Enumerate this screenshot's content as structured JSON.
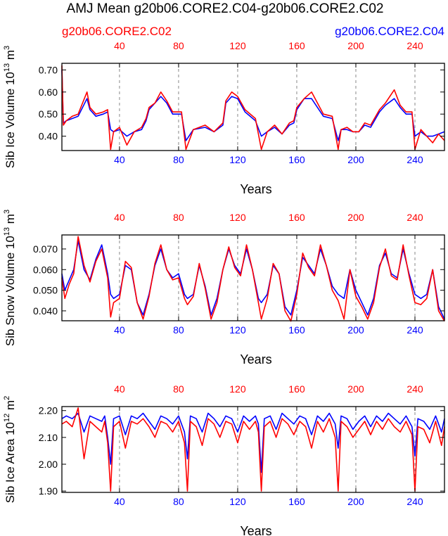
{
  "title": "AMJ Mean g20b06.CORE2.C04-g20b06.CORE2.C02",
  "legend_left": "g20b06.CORE2.C02",
  "legend_right": "g20b06.CORE2.C04",
  "colors": {
    "red": "#ff0000",
    "blue": "#0000ff",
    "black": "#000000",
    "grid": "#888888"
  },
  "chart_data": [
    {
      "type": "line",
      "ylabel_base": "Sib Ice Volume 10",
      "ylabel_exp": "13",
      "ylabel_unit": " m",
      "ylabel_unit_exp": "3",
      "xlabel": "Years",
      "xlim": [
        1,
        260
      ],
      "ylim": [
        0.335,
        0.73
      ],
      "yticks": [
        0.4,
        0.5,
        0.6,
        0.7
      ],
      "ytick_labels": [
        "0.40",
        "0.50",
        "0.60",
        "0.70"
      ],
      "xticks": [
        40,
        80,
        120,
        160,
        200,
        240
      ],
      "xtick_labels": [
        "40",
        "80",
        "120",
        "160",
        "200",
        "240"
      ],
      "grid_x": [
        40,
        80,
        120,
        160,
        200,
        240
      ],
      "series": [
        {
          "name": "g20b06.CORE2.C04",
          "color": "blue",
          "x": [
            1,
            2,
            4,
            8,
            12,
            18,
            20,
            24,
            29,
            32,
            34,
            36,
            40,
            45,
            50,
            55,
            58,
            60,
            64,
            68,
            72,
            76,
            82,
            85,
            90,
            98,
            104,
            110,
            112,
            116,
            120,
            125,
            132,
            136,
            140,
            145,
            150,
            155,
            158,
            160,
            165,
            170,
            178,
            184,
            188,
            190,
            194,
            198,
            202,
            206,
            210,
            216,
            220,
            226,
            230,
            234,
            238,
            240,
            244,
            248,
            252,
            256,
            260
          ],
          "y": [
            0.7,
            0.46,
            0.47,
            0.48,
            0.49,
            0.57,
            0.52,
            0.49,
            0.5,
            0.51,
            0.43,
            0.42,
            0.43,
            0.4,
            0.42,
            0.43,
            0.47,
            0.52,
            0.55,
            0.58,
            0.55,
            0.5,
            0.5,
            0.38,
            0.43,
            0.44,
            0.42,
            0.45,
            0.55,
            0.58,
            0.57,
            0.51,
            0.47,
            0.4,
            0.42,
            0.44,
            0.41,
            0.45,
            0.46,
            0.52,
            0.57,
            0.57,
            0.49,
            0.48,
            0.38,
            0.43,
            0.43,
            0.42,
            0.42,
            0.45,
            0.44,
            0.51,
            0.54,
            0.57,
            0.53,
            0.5,
            0.5,
            0.4,
            0.42,
            0.4,
            0.4,
            0.41,
            0.42
          ]
        },
        {
          "name": "g20b06.CORE2.C02",
          "color": "red",
          "x": [
            1,
            2,
            4,
            8,
            12,
            18,
            20,
            24,
            29,
            32,
            34,
            36,
            40,
            45,
            50,
            55,
            58,
            60,
            64,
            68,
            72,
            76,
            82,
            85,
            90,
            98,
            104,
            110,
            112,
            116,
            120,
            125,
            132,
            136,
            140,
            145,
            150,
            155,
            158,
            160,
            165,
            170,
            178,
            184,
            188,
            190,
            194,
            198,
            202,
            206,
            210,
            216,
            220,
            226,
            230,
            234,
            238,
            240,
            244,
            248,
            252,
            256,
            260
          ],
          "y": [
            0.72,
            0.45,
            0.47,
            0.49,
            0.5,
            0.6,
            0.53,
            0.5,
            0.51,
            0.52,
            0.34,
            0.42,
            0.44,
            0.36,
            0.42,
            0.44,
            0.48,
            0.53,
            0.55,
            0.6,
            0.56,
            0.51,
            0.51,
            0.34,
            0.43,
            0.45,
            0.42,
            0.46,
            0.56,
            0.6,
            0.58,
            0.52,
            0.48,
            0.34,
            0.42,
            0.45,
            0.41,
            0.46,
            0.47,
            0.53,
            0.57,
            0.6,
            0.5,
            0.49,
            0.34,
            0.43,
            0.44,
            0.42,
            0.42,
            0.46,
            0.45,
            0.52,
            0.55,
            0.61,
            0.54,
            0.51,
            0.51,
            0.34,
            0.43,
            0.4,
            0.37,
            0.41,
            0.38
          ]
        }
      ]
    },
    {
      "type": "line",
      "ylabel_base": "Sib Snow Volume 10",
      "ylabel_exp": "13",
      "ylabel_unit": " m",
      "ylabel_unit_exp": "3",
      "xlabel": "Years",
      "xlim": [
        1,
        260
      ],
      "ylim": [
        0.0352,
        0.0768
      ],
      "yticks": [
        0.04,
        0.05,
        0.06,
        0.07
      ],
      "ytick_labels": [
        "0.040",
        "0.050",
        "0.060",
        "0.070"
      ],
      "xticks": [
        40,
        80,
        120,
        160,
        200,
        240
      ],
      "xtick_labels": [
        "40",
        "80",
        "120",
        "160",
        "200",
        "240"
      ],
      "grid_x": [
        40,
        80,
        120,
        160,
        200,
        240
      ],
      "series": [
        {
          "name": "g20b06.CORE2.C04",
          "color": "blue",
          "x": [
            1,
            3,
            6,
            9,
            12,
            16,
            20,
            24,
            28,
            32,
            34,
            36,
            40,
            44,
            48,
            52,
            56,
            60,
            64,
            68,
            72,
            76,
            80,
            84,
            86,
            90,
            94,
            98,
            102,
            106,
            110,
            114,
            118,
            122,
            126,
            130,
            134,
            136,
            140,
            144,
            148,
            152,
            156,
            160,
            164,
            168,
            172,
            176,
            180,
            184,
            188,
            192,
            196,
            200,
            204,
            208,
            212,
            216,
            220,
            224,
            228,
            232,
            236,
            240,
            244,
            248,
            252,
            256,
            260
          ],
          "y": [
            0.058,
            0.05,
            0.055,
            0.06,
            0.074,
            0.06,
            0.055,
            0.065,
            0.072,
            0.058,
            0.048,
            0.046,
            0.048,
            0.062,
            0.06,
            0.044,
            0.038,
            0.048,
            0.062,
            0.07,
            0.06,
            0.056,
            0.058,
            0.048,
            0.046,
            0.048,
            0.062,
            0.052,
            0.038,
            0.046,
            0.06,
            0.07,
            0.062,
            0.058,
            0.07,
            0.06,
            0.046,
            0.044,
            0.048,
            0.062,
            0.058,
            0.042,
            0.038,
            0.05,
            0.066,
            0.062,
            0.058,
            0.07,
            0.062,
            0.052,
            0.048,
            0.046,
            0.06,
            0.05,
            0.044,
            0.038,
            0.046,
            0.062,
            0.068,
            0.058,
            0.056,
            0.07,
            0.058,
            0.048,
            0.046,
            0.048,
            0.06,
            0.042,
            0.036
          ]
        },
        {
          "name": "g20b06.CORE2.C02",
          "color": "red",
          "x": [
            1,
            3,
            6,
            9,
            12,
            16,
            20,
            24,
            28,
            32,
            34,
            36,
            40,
            44,
            48,
            52,
            56,
            60,
            64,
            68,
            72,
            76,
            80,
            84,
            86,
            90,
            94,
            98,
            102,
            106,
            110,
            114,
            118,
            122,
            126,
            130,
            134,
            136,
            140,
            144,
            148,
            152,
            156,
            160,
            164,
            168,
            172,
            176,
            180,
            184,
            188,
            192,
            196,
            200,
            204,
            208,
            212,
            216,
            220,
            224,
            228,
            232,
            236,
            240,
            244,
            248,
            252,
            256,
            260
          ],
          "y": [
            0.056,
            0.046,
            0.053,
            0.058,
            0.076,
            0.062,
            0.054,
            0.064,
            0.07,
            0.056,
            0.037,
            0.044,
            0.046,
            0.064,
            0.061,
            0.044,
            0.036,
            0.047,
            0.063,
            0.072,
            0.06,
            0.055,
            0.056,
            0.046,
            0.043,
            0.047,
            0.063,
            0.051,
            0.036,
            0.044,
            0.06,
            0.071,
            0.061,
            0.057,
            0.072,
            0.06,
            0.044,
            0.036,
            0.046,
            0.063,
            0.058,
            0.04,
            0.035,
            0.048,
            0.068,
            0.061,
            0.057,
            0.072,
            0.062,
            0.05,
            0.045,
            0.036,
            0.06,
            0.047,
            0.042,
            0.036,
            0.044,
            0.061,
            0.07,
            0.057,
            0.055,
            0.072,
            0.057,
            0.044,
            0.043,
            0.046,
            0.06,
            0.04,
            0.035
          ]
        }
      ]
    },
    {
      "type": "line",
      "ylabel_base": "Sib Ice Area 10",
      "ylabel_exp": "12",
      "ylabel_unit": " m",
      "ylabel_unit_exp": "2",
      "xlabel": "Years",
      "xlim": [
        1,
        260
      ],
      "ylim": [
        1.895,
        2.215
      ],
      "yticks": [
        1.9,
        2.0,
        2.1,
        2.2
      ],
      "ytick_labels": [
        "1.90",
        "2.00",
        "2.10",
        "2.20"
      ],
      "xticks": [
        40,
        80,
        120,
        160,
        200,
        240
      ],
      "xtick_labels": [
        "40",
        "80",
        "120",
        "160",
        "200",
        "240"
      ],
      "grid_x": [
        40,
        80,
        120,
        160,
        200,
        240
      ],
      "series": [
        {
          "name": "g20b06.CORE2.C04",
          "color": "blue",
          "x": [
            1,
            4,
            8,
            12,
            16,
            20,
            24,
            28,
            30,
            32,
            34,
            36,
            40,
            44,
            48,
            52,
            56,
            60,
            64,
            68,
            72,
            76,
            80,
            84,
            86,
            88,
            92,
            96,
            100,
            104,
            108,
            112,
            116,
            120,
            124,
            128,
            132,
            134,
            136,
            138,
            142,
            146,
            150,
            154,
            158,
            162,
            166,
            170,
            174,
            178,
            182,
            186,
            188,
            190,
            194,
            198,
            202,
            206,
            210,
            214,
            218,
            222,
            226,
            230,
            234,
            238,
            240,
            242,
            246,
            250,
            254,
            258,
            260
          ],
          "y": [
            2.17,
            2.18,
            2.17,
            2.19,
            2.12,
            2.18,
            2.17,
            2.16,
            2.18,
            2.1,
            2.0,
            2.17,
            2.18,
            2.11,
            2.18,
            2.17,
            2.19,
            2.16,
            2.13,
            2.18,
            2.17,
            2.15,
            2.18,
            2.12,
            2.02,
            2.18,
            2.17,
            2.12,
            2.19,
            2.17,
            2.14,
            2.18,
            2.17,
            2.12,
            2.18,
            2.16,
            2.18,
            2.15,
            1.97,
            2.17,
            2.18,
            2.13,
            2.19,
            2.17,
            2.15,
            2.18,
            2.17,
            2.11,
            2.18,
            2.16,
            2.19,
            2.15,
            2.06,
            2.18,
            2.17,
            2.13,
            2.16,
            2.18,
            2.14,
            2.18,
            2.16,
            2.19,
            2.17,
            2.15,
            2.18,
            2.14,
            2.03,
            2.17,
            2.16,
            2.13,
            2.18,
            2.12,
            2.17
          ]
        },
        {
          "name": "g20b06.CORE2.C02",
          "color": "red",
          "x": [
            1,
            4,
            8,
            12,
            16,
            20,
            24,
            28,
            30,
            32,
            34,
            36,
            40,
            44,
            48,
            52,
            56,
            60,
            64,
            68,
            72,
            76,
            80,
            84,
            86,
            88,
            92,
            96,
            100,
            104,
            108,
            112,
            116,
            120,
            124,
            128,
            132,
            134,
            136,
            138,
            142,
            146,
            150,
            154,
            158,
            162,
            166,
            170,
            174,
            178,
            182,
            186,
            188,
            190,
            194,
            198,
            202,
            206,
            210,
            214,
            218,
            222,
            226,
            230,
            234,
            238,
            240,
            242,
            246,
            250,
            254,
            258,
            260
          ],
          "y": [
            2.15,
            2.16,
            2.14,
            2.21,
            2.02,
            2.16,
            2.14,
            2.12,
            2.16,
            2.08,
            1.9,
            2.14,
            2.16,
            2.06,
            2.16,
            2.15,
            2.17,
            2.14,
            2.1,
            2.16,
            2.15,
            2.12,
            2.16,
            2.08,
            1.9,
            2.16,
            2.14,
            2.07,
            2.17,
            2.15,
            2.1,
            2.16,
            2.15,
            2.08,
            2.16,
            2.13,
            2.16,
            2.12,
            1.9,
            2.14,
            2.16,
            2.1,
            2.17,
            2.15,
            2.11,
            2.16,
            2.14,
            2.06,
            2.16,
            2.12,
            2.17,
            2.1,
            1.9,
            2.16,
            2.14,
            2.1,
            2.13,
            2.16,
            2.11,
            2.16,
            2.13,
            2.17,
            2.14,
            2.12,
            2.16,
            2.11,
            1.9,
            2.14,
            2.13,
            2.08,
            2.16,
            2.07,
            2.14
          ]
        }
      ]
    }
  ]
}
